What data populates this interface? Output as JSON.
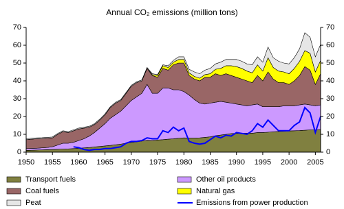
{
  "chart_data": {
    "type": "stacked_area",
    "title": "Annual CO₂ emissions (million tons)",
    "x": [
      1950,
      1951,
      1952,
      1953,
      1954,
      1955,
      1956,
      1957,
      1958,
      1959,
      1960,
      1961,
      1962,
      1963,
      1964,
      1965,
      1966,
      1967,
      1968,
      1969,
      1970,
      1971,
      1972,
      1973,
      1974,
      1975,
      1976,
      1977,
      1978,
      1979,
      1980,
      1981,
      1982,
      1983,
      1984,
      1985,
      1986,
      1987,
      1988,
      1989,
      1990,
      1991,
      1992,
      1993,
      1994,
      1995,
      1996,
      1997,
      1998,
      1999,
      2000,
      2001,
      2002,
      2003,
      2004,
      2005,
      2006
    ],
    "xlim": [
      1950,
      2006
    ],
    "xticks": [
      1950,
      1955,
      1960,
      1965,
      1970,
      1975,
      1980,
      1985,
      1990,
      1995,
      2000,
      2005
    ],
    "ylim": [
      0,
      70
    ],
    "yticks": [
      0,
      10,
      20,
      30,
      40,
      50,
      60,
      70
    ],
    "y2lim": [
      0,
      70
    ],
    "y2ticks": [
      0,
      10,
      20,
      30,
      40,
      50,
      60,
      70
    ],
    "legend": "bottom",
    "series": [
      {
        "name": "Transport fuels",
        "color": "#808040",
        "values": [
          1.0,
          1.1,
          1.2,
          1.3,
          1.4,
          1.5,
          1.6,
          1.7,
          1.8,
          2.0,
          2.2,
          2.4,
          2.6,
          2.9,
          3.2,
          3.5,
          3.8,
          4.1,
          4.5,
          5.0,
          5.5,
          5.8,
          6.2,
          6.6,
          6.5,
          6.8,
          7.0,
          7.3,
          7.5,
          7.8,
          8.0,
          7.9,
          7.9,
          8.0,
          8.3,
          8.6,
          9.2,
          9.6,
          10.0,
          10.4,
          10.5,
          10.6,
          10.6,
          10.6,
          11.0,
          11.0,
          11.2,
          11.4,
          11.6,
          11.8,
          11.9,
          12.0,
          12.1,
          12.3,
          12.5,
          12.5,
          12.7
        ]
      },
      {
        "name": "Other oil products",
        "color": "#cc99ff",
        "values": [
          1.0,
          1.0,
          1.0,
          1.1,
          1.2,
          1.5,
          2.4,
          3.3,
          3.2,
          3.5,
          4.3,
          5.1,
          6.4,
          8.1,
          10.3,
          12.5,
          15.2,
          16.9,
          18.5,
          21.0,
          23.5,
          25.2,
          26.8,
          31.4,
          26.5,
          26.2,
          29.0,
          28.7,
          27.5,
          27.2,
          26.0,
          24.1,
          21.6,
          19.5,
          18.7,
          18.9,
          18.8,
          18.9,
          18.0,
          17.1,
          16.5,
          15.9,
          15.4,
          15.9,
          16.0,
          14.5,
          14.3,
          14.1,
          13.9,
          14.2,
          14.1,
          14.0,
          14.4,
          14.7,
          14.0,
          13.5,
          13.8
        ]
      },
      {
        "name": "Coal fuels",
        "color": "#996666",
        "values": [
          5.0,
          5.2,
          5.3,
          5.2,
          5.2,
          5.0,
          6.0,
          6.5,
          6.0,
          6.5,
          6.5,
          6.0,
          5.0,
          4.5,
          4.5,
          5.0,
          6.0,
          6.5,
          6.0,
          7.0,
          8.0,
          8.0,
          7.0,
          9.0,
          10.0,
          9.0,
          11.0,
          10.0,
          14.0,
          15.0,
          16.0,
          11.0,
          11.5,
          12.5,
          15.0,
          14.5,
          16.0,
          14.5,
          16.0,
          15.5,
          15.0,
          14.5,
          14.0,
          12.5,
          16.0,
          14.5,
          19.5,
          15.5,
          13.5,
          13.0,
          12.0,
          14.0,
          16.5,
          21.0,
          19.5,
          12.0,
          17.5
        ]
      },
      {
        "name": "Natural gas",
        "color": "#ffff00",
        "values": [
          0,
          0,
          0,
          0,
          0,
          0,
          0,
          0,
          0,
          0,
          0,
          0,
          0,
          0,
          0,
          0,
          0,
          0,
          0,
          0,
          0,
          0,
          0,
          0,
          0.5,
          1.0,
          1.5,
          1.5,
          1.5,
          2.0,
          2.0,
          1.5,
          1.5,
          1.5,
          1.5,
          2.0,
          2.5,
          4.0,
          4.5,
          5.5,
          6.0,
          6.0,
          5.5,
          5.5,
          6.0,
          5.5,
          8.0,
          6.5,
          6.5,
          6.0,
          6.0,
          7.0,
          8.0,
          9.0,
          9.5,
          7.0,
          7.5
        ]
      },
      {
        "name": "Peat",
        "color": "#e6e6e6",
        "values": [
          0.5,
          0.5,
          0.5,
          0.5,
          0.5,
          0.5,
          0.5,
          0.5,
          0.5,
          0.5,
          0.5,
          0.5,
          0.5,
          0.5,
          0.5,
          0.5,
          0.5,
          0.5,
          0.5,
          0.5,
          0.5,
          0.5,
          0.5,
          0.5,
          0.5,
          0.5,
          0.5,
          1.0,
          1.0,
          1.5,
          1.5,
          2.0,
          2.5,
          2.5,
          2.5,
          3.0,
          3.0,
          3.5,
          3.5,
          3.5,
          4.0,
          4.0,
          4.0,
          4.5,
          4.5,
          5.0,
          6.0,
          5.5,
          5.5,
          5.0,
          5.5,
          6.0,
          7.0,
          10.0,
          9.0,
          8.5,
          9.0
        ]
      },
      {
        "name": "Emissions from power production",
        "color": "#0000ff",
        "kind": "line",
        "values": [
          null,
          null,
          null,
          null,
          null,
          null,
          null,
          null,
          null,
          3.0,
          2.5,
          1.5,
          1.0,
          1.5,
          1.5,
          2.0,
          2.0,
          2.5,
          3.0,
          5.0,
          6.0,
          6.0,
          6.5,
          8.0,
          7.5,
          7.5,
          12.0,
          11.0,
          14.0,
          12.0,
          13.5,
          6.0,
          5.0,
          4.5,
          5.0,
          7.0,
          9.0,
          8.0,
          9.5,
          9.0,
          11.0,
          10.5,
          10.0,
          12.0,
          16.0,
          14.0,
          18.0,
          15.0,
          12.0,
          12.0,
          12.0,
          15.0,
          17.0,
          25.0,
          22.0,
          11.0,
          20.0
        ]
      }
    ]
  }
}
